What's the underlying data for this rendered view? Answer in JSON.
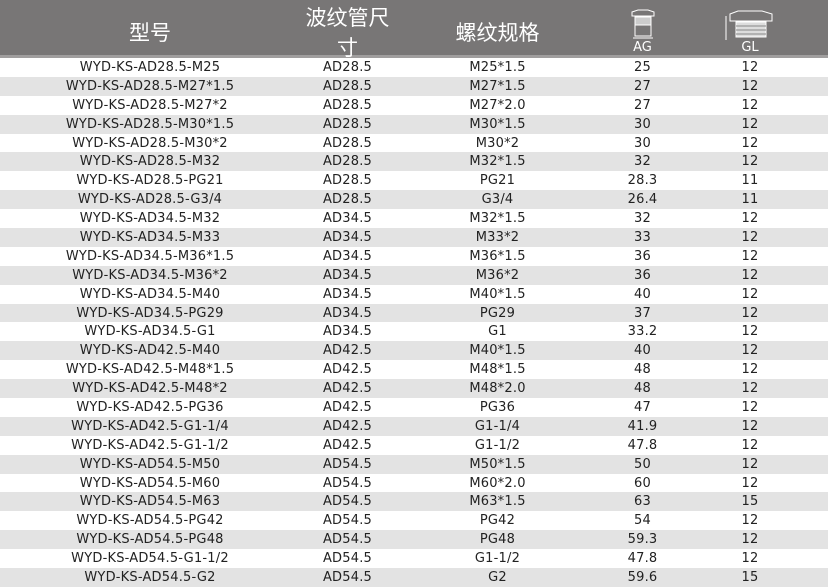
{
  "header": {
    "model": "型号",
    "hose_size": "波纹管尺寸",
    "thread_spec": "螺纹规格",
    "ag": "AG",
    "gl": "GL",
    "ag_icon": "fitting-ag-dimension-icon",
    "gl_icon": "fitting-gl-dimension-icon"
  },
  "colors": {
    "header_bg": "#787676",
    "stripe": "#e3e3e3"
  },
  "rows": [
    [
      "WYD-KS-AD28.5-M25",
      "AD28.5",
      "M25*1.5",
      "25",
      "12"
    ],
    [
      "WYD-KS-AD28.5-M27*1.5",
      "AD28.5",
      "M27*1.5",
      "27",
      "12"
    ],
    [
      "WYD-KS-AD28.5-M27*2",
      "AD28.5",
      "M27*2.0",
      "27",
      "12"
    ],
    [
      "WYD-KS-AD28.5-M30*1.5",
      "AD28.5",
      "M30*1.5",
      "30",
      "12"
    ],
    [
      "WYD-KS-AD28.5-M30*2",
      "AD28.5",
      "M30*2",
      "30",
      "12"
    ],
    [
      "WYD-KS-AD28.5-M32",
      "AD28.5",
      "M32*1.5",
      "32",
      "12"
    ],
    [
      "WYD-KS-AD28.5-PG21",
      "AD28.5",
      "PG21",
      "28.3",
      "11"
    ],
    [
      "WYD-KS-AD28.5-G3/4",
      "AD28.5",
      "G3/4",
      "26.4",
      "11"
    ],
    [
      "WYD-KS-AD34.5-M32",
      "AD34.5",
      "M32*1.5",
      "32",
      "12"
    ],
    [
      "WYD-KS-AD34.5-M33",
      "AD34.5",
      "M33*2",
      "33",
      "12"
    ],
    [
      "WYD-KS-AD34.5-M36*1.5",
      "AD34.5",
      "M36*1.5",
      "36",
      "12"
    ],
    [
      "WYD-KS-AD34.5-M36*2",
      "AD34.5",
      "M36*2",
      "36",
      "12"
    ],
    [
      "WYD-KS-AD34.5-M40",
      "AD34.5",
      "M40*1.5",
      "40",
      "12"
    ],
    [
      "WYD-KS-AD34.5-PG29",
      "AD34.5",
      "PG29",
      "37",
      "12"
    ],
    [
      "WYD-KS-AD34.5-G1",
      "AD34.5",
      "G1",
      "33.2",
      "12"
    ],
    [
      "WYD-KS-AD42.5-M40",
      "AD42.5",
      "M40*1.5",
      "40",
      "12"
    ],
    [
      "WYD-KS-AD42.5-M48*1.5",
      "AD42.5",
      "M48*1.5",
      "48",
      "12"
    ],
    [
      "WYD-KS-AD42.5-M48*2",
      "AD42.5",
      "M48*2.0",
      "48",
      "12"
    ],
    [
      "WYD-KS-AD42.5-PG36",
      "AD42.5",
      "PG36",
      "47",
      "12"
    ],
    [
      "WYD-KS-AD42.5-G1-1/4",
      "AD42.5",
      "G1-1/4",
      "41.9",
      "12"
    ],
    [
      "WYD-KS-AD42.5-G1-1/2",
      "AD42.5",
      "G1-1/2",
      "47.8",
      "12"
    ],
    [
      "WYD-KS-AD54.5-M50",
      "AD54.5",
      "M50*1.5",
      "50",
      "12"
    ],
    [
      "WYD-KS-AD54.5-M60",
      "AD54.5",
      "M60*2.0",
      "60",
      "12"
    ],
    [
      "WYD-KS-AD54.5-M63",
      "AD54.5",
      "M63*1.5",
      "63",
      "15"
    ],
    [
      "WYD-KS-AD54.5-PG42",
      "AD54.5",
      "PG42",
      "54",
      "12"
    ],
    [
      "WYD-KS-AD54.5-PG48",
      "AD54.5",
      "PG48",
      "59.3",
      "12"
    ],
    [
      "WYD-KS-AD54.5-G1-1/2",
      "AD54.5",
      "G1-1/2",
      "47.8",
      "12"
    ],
    [
      "WYD-KS-AD54.5-G2",
      "AD54.5",
      "G2",
      "59.6",
      "15"
    ]
  ]
}
